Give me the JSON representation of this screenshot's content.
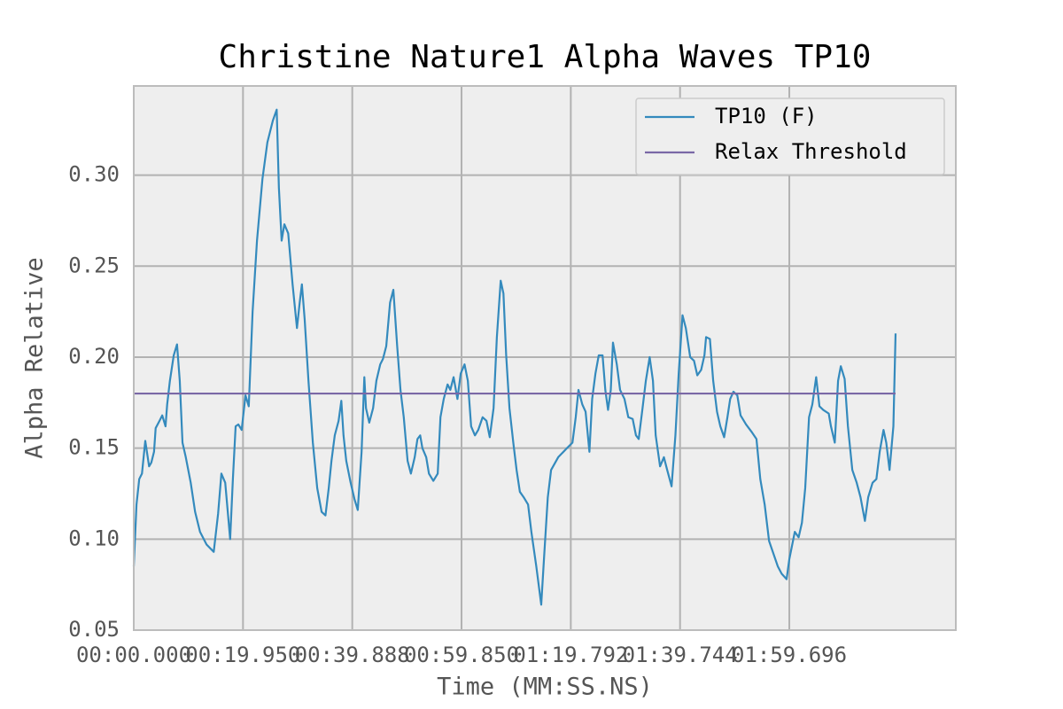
{
  "chart_data": {
    "type": "line",
    "title": "Christine Nature1 Alpha Waves TP10",
    "x_label": "Time (MM:SS.NS)",
    "y_label": "Alpha Relative",
    "xlim": [
      0,
      150.1
    ],
    "ylim": [
      0.05,
      0.349
    ],
    "xticks": [
      {
        "value": 0,
        "label": "00:00.000"
      },
      {
        "value": 19.949,
        "label": "00:19.950"
      },
      {
        "value": 39.899,
        "label": "00:39.888"
      },
      {
        "value": 59.848,
        "label": "00:59.850"
      },
      {
        "value": 79.797,
        "label": "01:19.792"
      },
      {
        "value": 99.747,
        "label": "01:39.744"
      },
      {
        "value": 119.696,
        "label": "01:59.696"
      }
    ],
    "yticks": [
      0.05,
      {
        "value": 0.1,
        "label": "0.10"
      },
      0.15,
      {
        "value": 0.2,
        "label": "0.20"
      },
      0.25,
      {
        "value": 0.3,
        "label": "0.30"
      }
    ],
    "grid": true,
    "legend": "upper right",
    "series": [
      {
        "name": "TP10 (F)",
        "color": "#348abd",
        "x": [
          0,
          0.5,
          1.0,
          1.5,
          2.1,
          2.8,
          3.2,
          3.7,
          4.0,
          4.7,
          5.2,
          5.8,
          6.1,
          6.6,
          7.3,
          7.9,
          8.4,
          8.9,
          9.5,
          10.4,
          11.2,
          12.1,
          13.3,
          14.6,
          15.4,
          16.0,
          16.7,
          17.6,
          18.1,
          18.6,
          19.1,
          19.7,
          20.4,
          21.0,
          21.7,
          22.5,
          23.5,
          24.4,
          25.4,
          26.1,
          26.5,
          27.0,
          27.5,
          28.2,
          29.0,
          29.8,
          30.3,
          30.7,
          31.2,
          31.9,
          32.7,
          33.5,
          34.3,
          35.0,
          35.6,
          36.1,
          36.7,
          37.4,
          37.9,
          38.3,
          38.8,
          39.6,
          40.3,
          40.9,
          41.6,
          42.1,
          42.4,
          43.0,
          43.7,
          44.3,
          45.0,
          45.5,
          46.1,
          46.8,
          47.4,
          48.1,
          48.7,
          49.3,
          50.0,
          50.6,
          51.3,
          51.8,
          52.3,
          52.7,
          53.4,
          53.9,
          54.7,
          55.5,
          56.0,
          56.6,
          57.3,
          57.8,
          58.4,
          59.1,
          59.7,
          60.4,
          61.0,
          61.6,
          62.3,
          62.9,
          63.7,
          64.4,
          65.0,
          65.7,
          66.3,
          67.0,
          67.5,
          68.0,
          68.6,
          69.3,
          69.9,
          70.5,
          71.2,
          72.0,
          72.6,
          73.5,
          74.4,
          74.9,
          75.6,
          76.2,
          77.5,
          79.1,
          80.1,
          80.7,
          81.2,
          81.9,
          82.5,
          83.2,
          83.7,
          84.3,
          84.9,
          85.6,
          86.1,
          86.6,
          87.1,
          87.5,
          88.2,
          88.8,
          89.6,
          90.3,
          91.1,
          91.7,
          92.2,
          92.9,
          93.5,
          94.2,
          94.8,
          95.3,
          96.1,
          96.8,
          97.4,
          98.2,
          98.9,
          99.5,
          100.2,
          100.8,
          101.6,
          102.3,
          102.9,
          103.6,
          104.2,
          104.5,
          105.2,
          105.8,
          106.5,
          107.1,
          107.8,
          108.4,
          108.9,
          109.5,
          110.2,
          110.8,
          111.8,
          112.8,
          113.7,
          114.4,
          115.2,
          116.0,
          116.8,
          117.6,
          118.3,
          119.2,
          119.7,
          120.7,
          121.4,
          122.0,
          122.6,
          123.3,
          123.9,
          124.6,
          125.2,
          125.9,
          126.9,
          127.3,
          128.0,
          128.6,
          129.1,
          129.8,
          130.4,
          131.2,
          132.0,
          132.7,
          133.5,
          134.1,
          134.9,
          135.6,
          136.2,
          136.9,
          137.4,
          138.0,
          138.7,
          139.1
        ],
        "values": [
          0.085,
          0.119,
          0.133,
          0.136,
          0.154,
          0.14,
          0.142,
          0.148,
          0.161,
          0.165,
          0.168,
          0.162,
          0.174,
          0.187,
          0.201,
          0.207,
          0.187,
          0.153,
          0.145,
          0.131,
          0.115,
          0.104,
          0.097,
          0.093,
          0.114,
          0.136,
          0.131,
          0.1,
          0.133,
          0.162,
          0.163,
          0.16,
          0.179,
          0.173,
          0.225,
          0.264,
          0.298,
          0.318,
          0.33,
          0.336,
          0.293,
          0.264,
          0.273,
          0.268,
          0.24,
          0.216,
          0.23,
          0.24,
          0.221,
          0.187,
          0.153,
          0.128,
          0.115,
          0.113,
          0.128,
          0.143,
          0.157,
          0.165,
          0.176,
          0.157,
          0.143,
          0.131,
          0.122,
          0.116,
          0.148,
          0.189,
          0.172,
          0.164,
          0.172,
          0.187,
          0.196,
          0.199,
          0.206,
          0.23,
          0.237,
          0.206,
          0.182,
          0.167,
          0.143,
          0.136,
          0.145,
          0.155,
          0.157,
          0.15,
          0.145,
          0.136,
          0.132,
          0.136,
          0.167,
          0.177,
          0.185,
          0.182,
          0.189,
          0.177,
          0.191,
          0.196,
          0.187,
          0.162,
          0.157,
          0.16,
          0.167,
          0.165,
          0.156,
          0.172,
          0.211,
          0.242,
          0.235,
          0.201,
          0.172,
          0.153,
          0.138,
          0.126,
          0.123,
          0.119,
          0.104,
          0.085,
          0.064,
          0.089,
          0.123,
          0.138,
          0.145,
          0.15,
          0.153,
          0.167,
          0.182,
          0.174,
          0.17,
          0.148,
          0.177,
          0.191,
          0.201,
          0.201,
          0.182,
          0.171,
          0.182,
          0.208,
          0.196,
          0.182,
          0.177,
          0.167,
          0.166,
          0.157,
          0.155,
          0.172,
          0.187,
          0.2,
          0.187,
          0.157,
          0.14,
          0.145,
          0.138,
          0.129,
          0.157,
          0.191,
          0.223,
          0.216,
          0.2,
          0.198,
          0.19,
          0.193,
          0.201,
          0.211,
          0.21,
          0.187,
          0.17,
          0.162,
          0.156,
          0.167,
          0.177,
          0.181,
          0.179,
          0.168,
          0.163,
          0.159,
          0.155,
          0.133,
          0.119,
          0.099,
          0.092,
          0.085,
          0.081,
          0.078,
          0.089,
          0.104,
          0.101,
          0.109,
          0.128,
          0.167,
          0.174,
          0.189,
          0.173,
          0.171,
          0.169,
          0.162,
          0.153,
          0.187,
          0.195,
          0.188,
          0.162,
          0.138,
          0.131,
          0.123,
          0.11,
          0.123,
          0.131,
          0.133,
          0.148,
          0.16,
          0.153,
          0.138,
          0.162,
          0.213
        ]
      },
      {
        "name": "Relax Threshold",
        "color": "#7a68a6",
        "x": [
          0,
          139.1
        ],
        "values": [
          0.18,
          0.18
        ]
      }
    ]
  }
}
